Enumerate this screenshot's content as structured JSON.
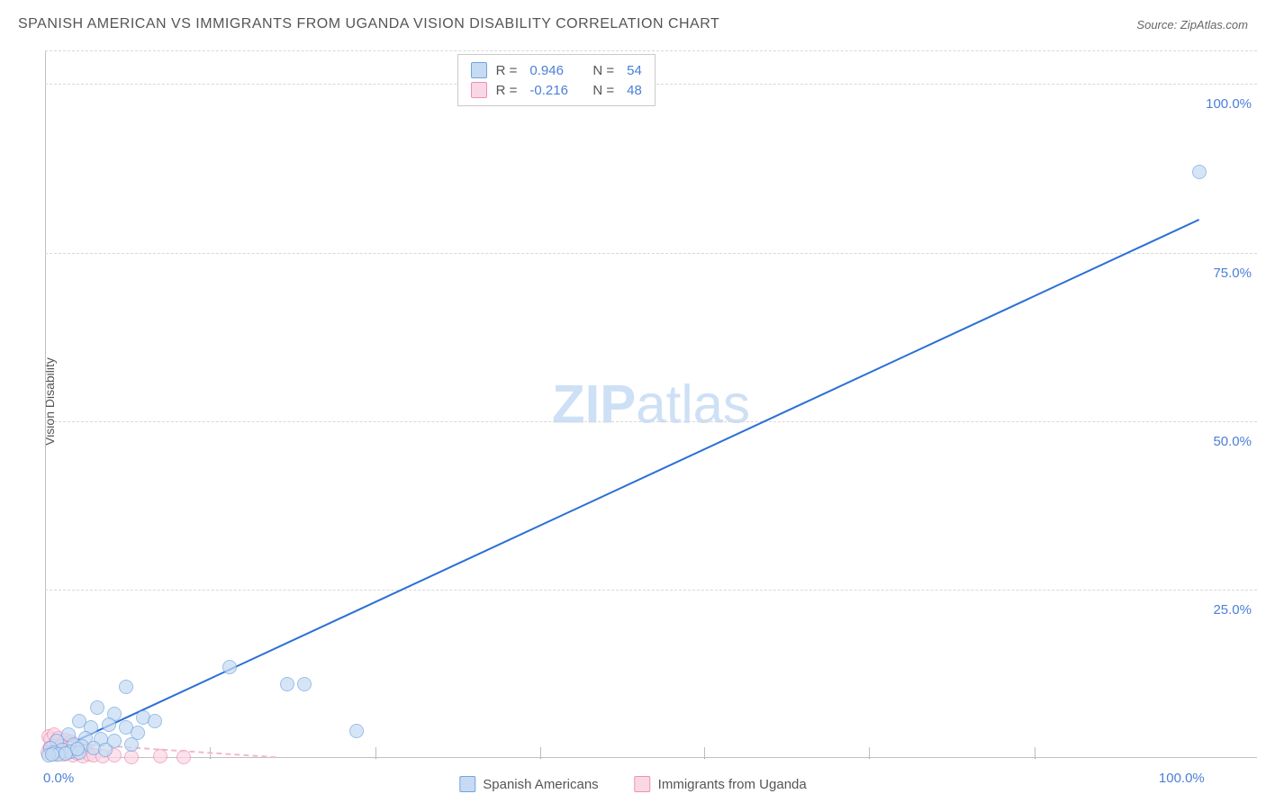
{
  "header": {
    "title": "SPANISH AMERICAN VS IMMIGRANTS FROM UGANDA VISION DISABILITY CORRELATION CHART",
    "source_label": "Source:",
    "source_name": "ZipAtlas.com"
  },
  "chart": {
    "type": "scatter",
    "ylabel": "Vision Disability",
    "xlim": [
      0,
      105
    ],
    "ylim": [
      0,
      105
    ],
    "xtick_labels": [
      "0.0%",
      "100.0%"
    ],
    "xtick_positions": [
      0,
      100
    ],
    "ytick_labels": [
      "25.0%",
      "50.0%",
      "75.0%",
      "100.0%"
    ],
    "ytick_positions": [
      25,
      50,
      75,
      100
    ],
    "minor_xticks": [
      14.3,
      28.6,
      42.9,
      57.1,
      71.4,
      85.7
    ],
    "background_color": "#ffffff",
    "grid_color": "#d8d8d8",
    "axis_color": "#c0c0c0",
    "label_color": "#4a7fd8",
    "marker_radius": 8,
    "marker_opacity": 0.7,
    "line_width": 2,
    "watermark_text_bold": "ZIP",
    "watermark_text_rest": "atlas",
    "watermark_color": "#cde0f5"
  },
  "series": {
    "blue": {
      "label": "Spanish Americans",
      "fill": "#c6dbf3",
      "stroke": "#6fa4e0",
      "line_color": "#2a6fd6",
      "R": "0.946",
      "N": "54",
      "regression": {
        "x1": 0,
        "y1": 0.5,
        "x2": 100,
        "y2": 80
      },
      "points": [
        [
          100,
          87
        ],
        [
          16,
          13.5
        ],
        [
          21,
          11
        ],
        [
          22.5,
          11
        ],
        [
          27,
          4
        ],
        [
          7,
          10.5
        ],
        [
          6,
          6.5
        ],
        [
          4.5,
          7.5
        ],
        [
          8.5,
          6
        ],
        [
          9.5,
          5.5
        ],
        [
          3,
          5.5
        ],
        [
          4,
          4.5
        ],
        [
          5.5,
          5
        ],
        [
          7,
          4.5
        ],
        [
          8,
          3.8
        ],
        [
          2,
          3.5
        ],
        [
          3.5,
          3
        ],
        [
          4.8,
          2.8
        ],
        [
          6,
          2.5
        ],
        [
          7.5,
          2
        ],
        [
          1,
          2.5
        ],
        [
          2.5,
          2
        ],
        [
          3.2,
          1.8
        ],
        [
          4.2,
          1.5
        ],
        [
          5.2,
          1.2
        ],
        [
          0.5,
          1.5
        ],
        [
          1.5,
          1.2
        ],
        [
          2.2,
          1
        ],
        [
          3,
          0.8
        ],
        [
          0.8,
          0.8
        ],
        [
          1.2,
          0.5
        ],
        [
          1.8,
          0.7
        ],
        [
          0.3,
          0.4
        ],
        [
          0.6,
          0.6
        ],
        [
          2.8,
          1.4
        ]
      ]
    },
    "pink": {
      "label": "Immigrants from Uganda",
      "fill": "#fad7e4",
      "stroke": "#ef8fb5",
      "line_color": "#f4b8cd",
      "line_dash": true,
      "R": "-0.216",
      "N": "48",
      "regression": {
        "x1": 0,
        "y1": 2.5,
        "x2": 20,
        "y2": 0.2
      },
      "points": [
        [
          0.3,
          3.2
        ],
        [
          0.5,
          2.8
        ],
        [
          0.8,
          3.5
        ],
        [
          1,
          2.5
        ],
        [
          1.2,
          3
        ],
        [
          1.5,
          2.2
        ],
        [
          1.8,
          2.7
        ],
        [
          2,
          2
        ],
        [
          2.3,
          2.4
        ],
        [
          2.6,
          1.8
        ],
        [
          0.4,
          1.5
        ],
        [
          0.7,
          1.8
        ],
        [
          1.1,
          1.4
        ],
        [
          1.4,
          1.7
        ],
        [
          1.7,
          1.2
        ],
        [
          2.1,
          1.5
        ],
        [
          2.5,
          1
        ],
        [
          2.9,
          1.3
        ],
        [
          3.2,
          0.9
        ],
        [
          3.6,
          1.1
        ],
        [
          0.2,
          0.8
        ],
        [
          0.6,
          1
        ],
        [
          0.9,
          0.6
        ],
        [
          1.3,
          0.9
        ],
        [
          1.6,
          0.5
        ],
        [
          2,
          0.8
        ],
        [
          2.4,
          0.4
        ],
        [
          2.8,
          0.7
        ],
        [
          3.3,
          0.3
        ],
        [
          3.8,
          0.5
        ],
        [
          4.2,
          0.4
        ],
        [
          5,
          0.3
        ],
        [
          6,
          0.4
        ],
        [
          7.5,
          0.2
        ],
        [
          10,
          0.3
        ],
        [
          12,
          0.2
        ]
      ]
    }
  },
  "stat_legend": {
    "rows": [
      {
        "series": "blue",
        "R_label": "R =",
        "N_label": "N ="
      },
      {
        "series": "pink",
        "R_label": "R =",
        "N_label": "N ="
      }
    ]
  }
}
